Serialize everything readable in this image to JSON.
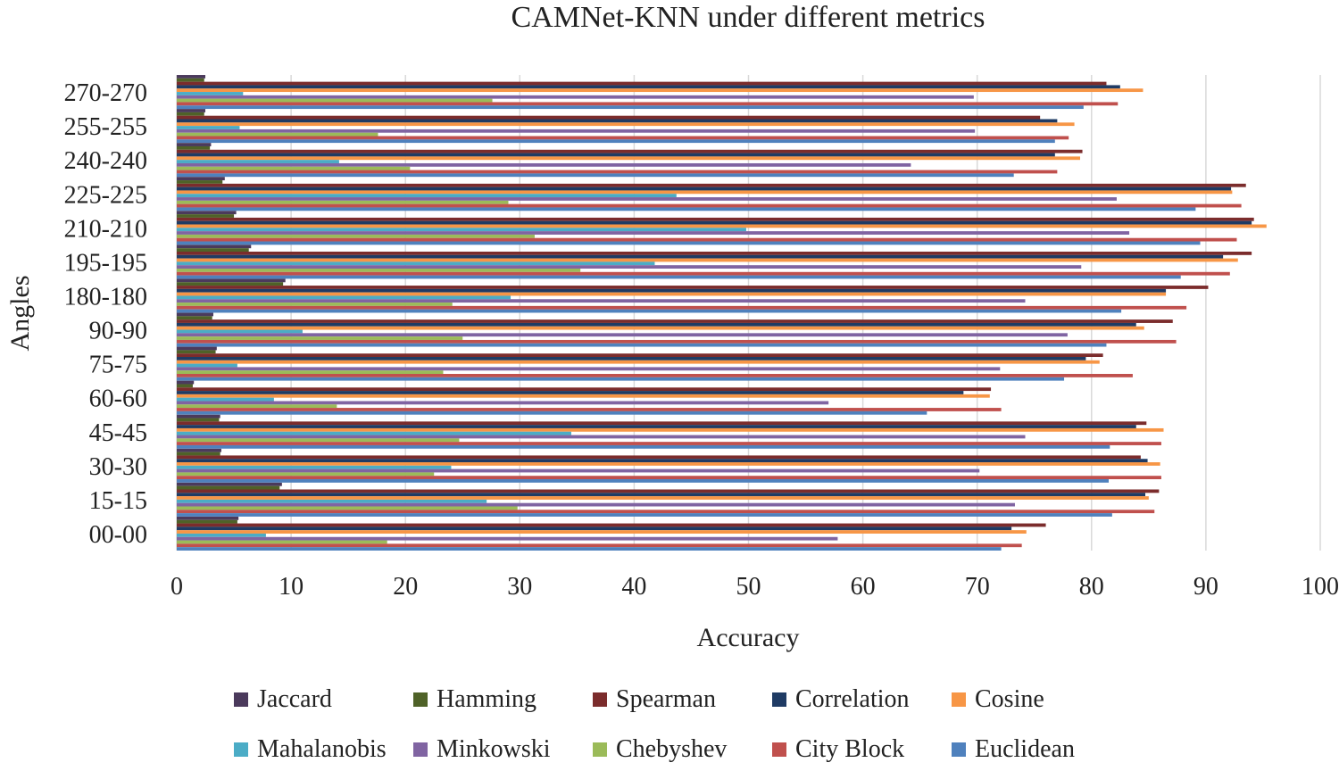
{
  "chart_data": {
    "type": "bar",
    "orientation": "horizontal",
    "title": "CAMNet-KNN under different metrics",
    "xlabel": "Accuracy",
    "ylabel": "Angles",
    "xlim": [
      0,
      100
    ],
    "xticks": [
      0,
      10,
      20,
      30,
      40,
      50,
      60,
      70,
      80,
      90,
      100
    ],
    "grid": true,
    "legend_position": "bottom",
    "categories": [
      "270-270",
      "255-255",
      "240-240",
      "225-225",
      "210-210",
      "195-195",
      "180-180",
      "90-90",
      "75-75",
      "60-60",
      "45-45",
      "30-30",
      "15-15",
      "00-00"
    ],
    "series": [
      {
        "name": "Jaccard",
        "color": "#4b3a5c",
        "values": [
          2.5,
          2.5,
          3.0,
          4.2,
          5.2,
          6.5,
          9.5,
          3.2,
          3.5,
          1.5,
          3.8,
          3.9,
          9.2,
          5.4
        ]
      },
      {
        "name": "Hamming",
        "color": "#4f6228",
        "values": [
          2.4,
          2.4,
          2.9,
          4.0,
          5.0,
          6.3,
          9.3,
          3.1,
          3.4,
          1.4,
          3.7,
          3.8,
          9.0,
          5.3
        ]
      },
      {
        "name": "Spearman",
        "color": "#7b2c2c",
        "values": [
          81.3,
          75.5,
          79.2,
          93.5,
          94.2,
          94.0,
          90.2,
          87.1,
          81.0,
          71.2,
          84.8,
          84.3,
          85.9,
          76.0
        ]
      },
      {
        "name": "Correlation",
        "color": "#1f3b64",
        "values": [
          82.5,
          77.0,
          76.8,
          92.2,
          94.0,
          91.5,
          86.5,
          83.9,
          79.5,
          68.8,
          83.9,
          84.9,
          84.7,
          73.0
        ]
      },
      {
        "name": "Cosine",
        "color": "#f79646",
        "values": [
          84.5,
          78.5,
          79.0,
          92.3,
          95.3,
          92.8,
          86.5,
          84.6,
          80.7,
          71.1,
          86.3,
          86.0,
          85.0,
          74.3
        ]
      },
      {
        "name": "Mahalanobis",
        "color": "#4bacc6",
        "values": [
          5.8,
          5.5,
          14.2,
          43.7,
          49.8,
          41.8,
          29.2,
          11.0,
          5.3,
          8.5,
          34.5,
          24.0,
          27.1,
          7.8
        ]
      },
      {
        "name": "Minkowski",
        "color": "#8064a2",
        "values": [
          69.7,
          69.8,
          64.2,
          82.2,
          83.3,
          79.1,
          74.2,
          77.9,
          72.0,
          57.0,
          74.2,
          70.2,
          73.3,
          57.8
        ]
      },
      {
        "name": "Chebyshev",
        "color": "#9bbb59",
        "values": [
          27.6,
          17.6,
          20.4,
          29.0,
          31.3,
          35.3,
          24.1,
          25.0,
          23.3,
          14.0,
          24.7,
          22.5,
          29.8,
          18.4
        ]
      },
      {
        "name": "City Block",
        "color": "#c0504d",
        "values": [
          82.3,
          78.0,
          77.0,
          93.1,
          92.7,
          92.1,
          88.3,
          87.4,
          83.6,
          72.1,
          86.1,
          86.1,
          85.5,
          73.9
        ]
      },
      {
        "name": "Euclidean",
        "color": "#4f81bd",
        "values": [
          79.3,
          76.8,
          73.2,
          89.1,
          89.5,
          87.8,
          82.6,
          81.3,
          77.6,
          65.6,
          81.6,
          81.5,
          81.8,
          72.1
        ]
      }
    ]
  }
}
